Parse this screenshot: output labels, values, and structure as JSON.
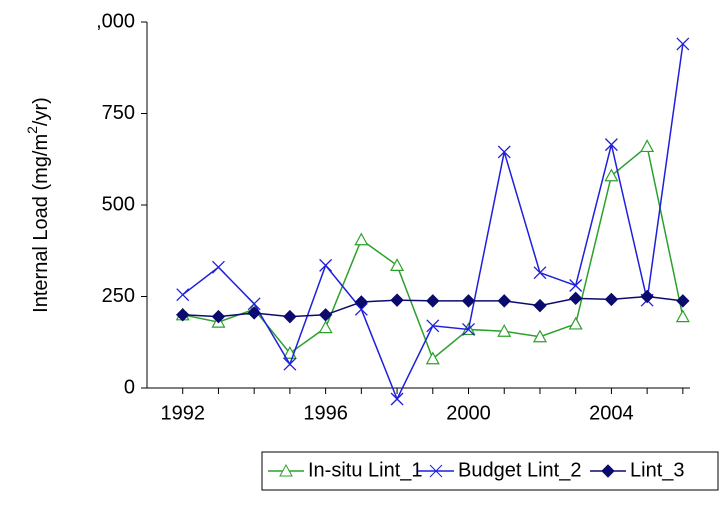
{
  "chart_data": {
    "type": "line",
    "ylabel_parts": [
      "Internal Load (mg/m",
      "2",
      "/yr)"
    ],
    "x": [
      1992,
      1993,
      1994,
      1995,
      1996,
      1997,
      1998,
      1999,
      2000,
      2001,
      2002,
      2003,
      2004,
      2005,
      2006
    ],
    "xlim": [
      1991,
      2006.2
    ],
    "xticks": [
      1992,
      1996,
      2000,
      2004
    ],
    "ylim": [
      0,
      1000
    ],
    "yticks": [
      0,
      250,
      500,
      750,
      {
        "value": 1000,
        "label": ",000"
      }
    ],
    "series": [
      {
        "name": "In-situ Lint_1",
        "color": "#2ca02c",
        "marker": "triangle",
        "values": [
          200,
          180,
          215,
          95,
          165,
          405,
          335,
          80,
          160,
          155,
          140,
          175,
          580,
          660,
          195
        ]
      },
      {
        "name": "Budget Lint_2",
        "color": "#1f1fdc",
        "marker": "x",
        "values": [
          255,
          330,
          230,
          65,
          335,
          215,
          -30,
          170,
          160,
          645,
          315,
          280,
          665,
          240,
          940
        ]
      },
      {
        "name": "Lint_3",
        "color": "#0b0b6e",
        "marker": "diamond",
        "values": [
          200,
          195,
          205,
          195,
          200,
          235,
          240,
          238,
          238,
          238,
          225,
          245,
          242,
          250,
          238
        ]
      }
    ]
  }
}
